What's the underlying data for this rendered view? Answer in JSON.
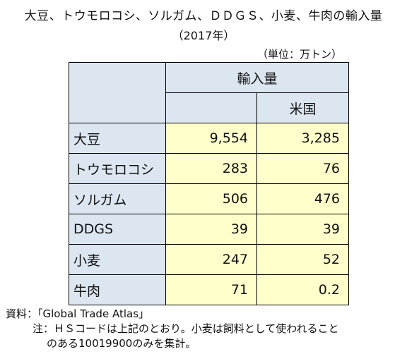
{
  "title": "大豆、トウモロコシ、ソルガム、ＤＤＧＳ、小麦、牛肉の輸入量",
  "subtitle": "（2017年）",
  "unit": "（単位：万トン）",
  "chart_data": {
    "type": "table",
    "header": {
      "group": "輸入量",
      "sub": "米国"
    },
    "rows": [
      {
        "label": "大豆",
        "total": "9,554",
        "us": "3,285"
      },
      {
        "label": "トウモロコシ",
        "total": "283",
        "us": "76"
      },
      {
        "label": "ソルガム",
        "total": "506",
        "us": "476"
      },
      {
        "label": "DDGS",
        "total": "39",
        "us": "39"
      },
      {
        "label": "小麦",
        "total": "247",
        "us": "52"
      },
      {
        "label": "牛肉",
        "total": "71",
        "us": "0.2"
      }
    ]
  },
  "notes": {
    "source": "資料：「Global Trade Atlas」",
    "note_line1": "注：ＨＳコードは上記のとおり。小麦は飼料として使われること",
    "note_line2": "のある10019900のみを集計。"
  },
  "colors": {
    "header_bg": "#dce6f1",
    "value_bg": "#ffffcc",
    "border": "#000000"
  }
}
